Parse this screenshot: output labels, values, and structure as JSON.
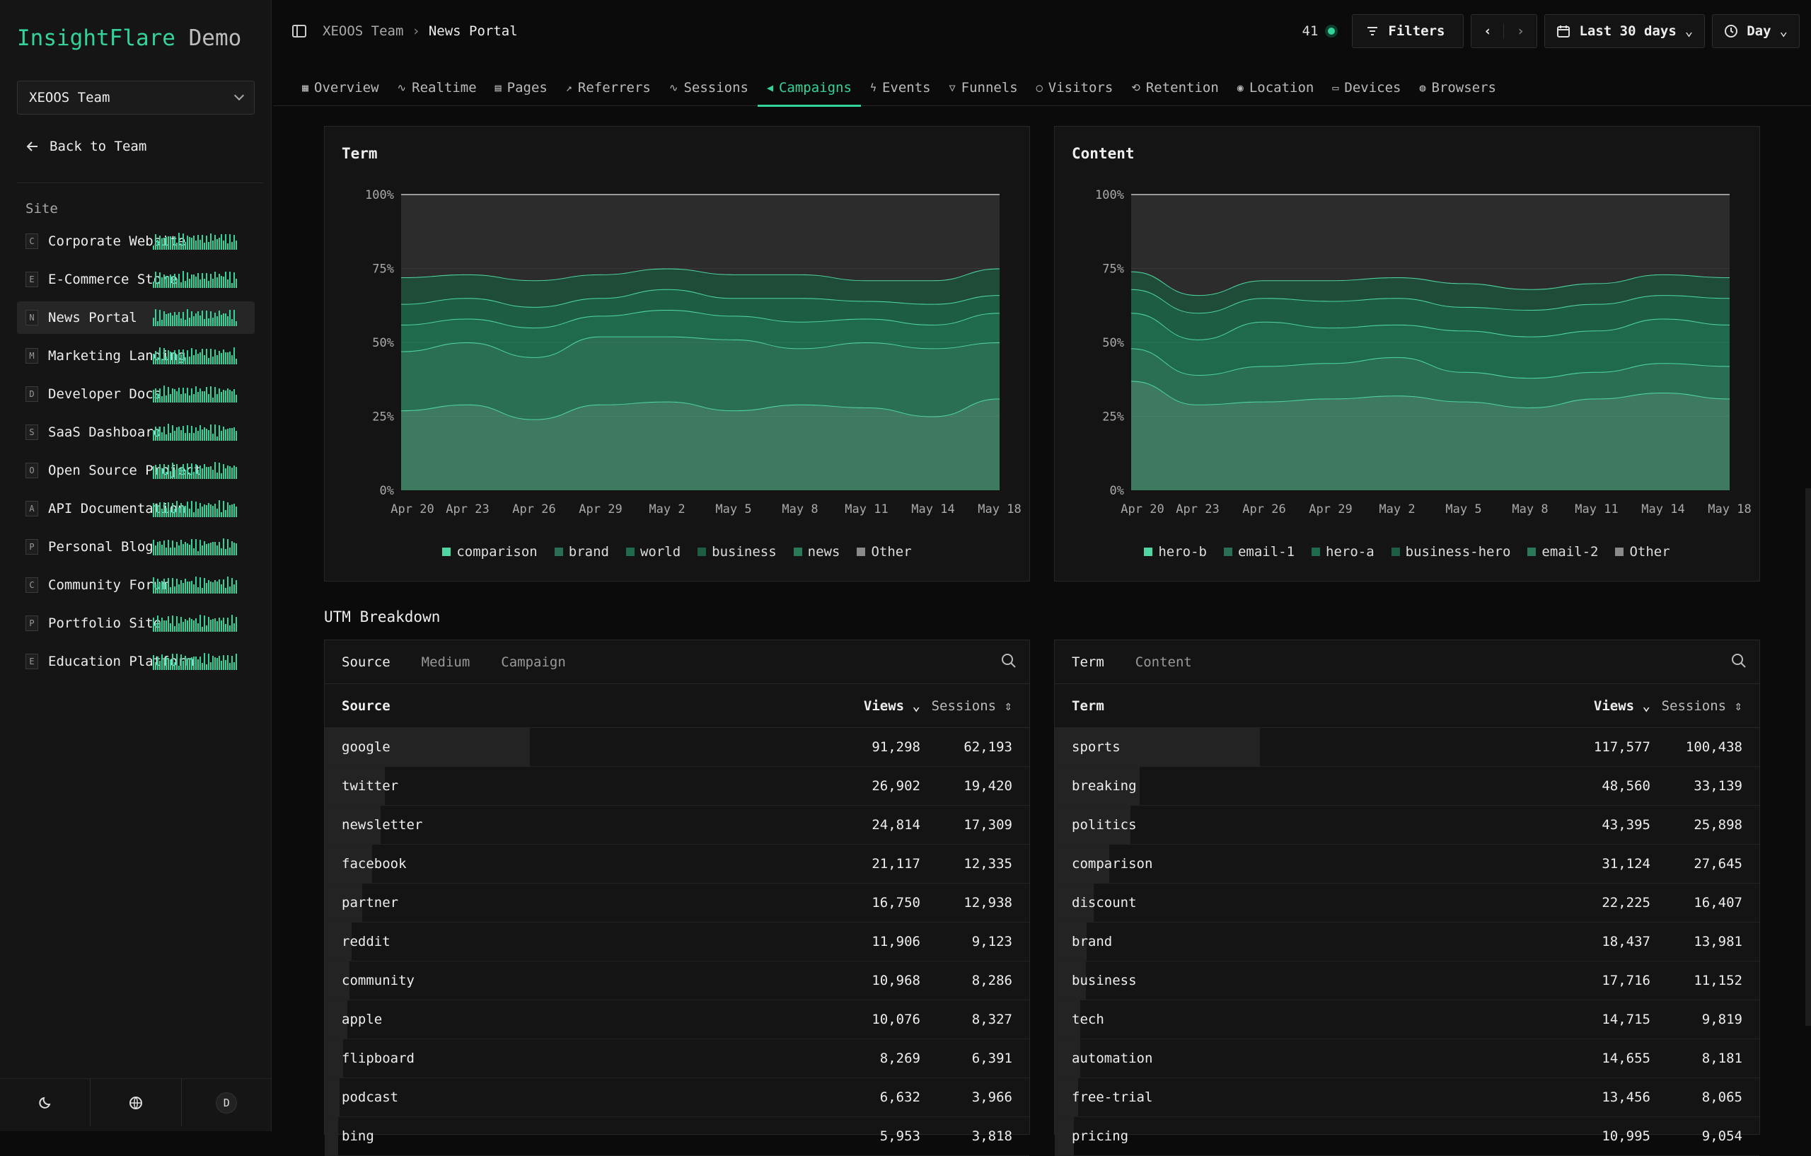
{
  "app": {
    "name": "InsightFlare",
    "suffix": "Demo"
  },
  "team": {
    "selected": "XEOOS Team",
    "back_label": "Back to Team"
  },
  "sidebar": {
    "section_label": "Site",
    "sites": [
      {
        "letter": "C",
        "name": "Corporate Website"
      },
      {
        "letter": "E",
        "name": "E-Commerce Store"
      },
      {
        "letter": "N",
        "name": "News Portal"
      },
      {
        "letter": "M",
        "name": "Marketing Landing"
      },
      {
        "letter": "D",
        "name": "Developer Docs"
      },
      {
        "letter": "S",
        "name": "SaaS Dashboard"
      },
      {
        "letter": "O",
        "name": "Open Source Project"
      },
      {
        "letter": "A",
        "name": "API Documentation"
      },
      {
        "letter": "P",
        "name": "Personal Blog"
      },
      {
        "letter": "C",
        "name": "Community Forum"
      },
      {
        "letter": "P",
        "name": "Portfolio Site"
      },
      {
        "letter": "E",
        "name": "Education Platform"
      }
    ],
    "avatar": "D"
  },
  "header": {
    "breadcrumb_team": "XEOOS Team",
    "breadcrumb_site": "News Portal",
    "online_count": "41",
    "filters_label": "Filters",
    "range_label": "Last 30 days",
    "interval_label": "Day"
  },
  "tabs": [
    "Overview",
    "Realtime",
    "Pages",
    "Referrers",
    "Sessions",
    "Campaigns",
    "Events",
    "Funnels",
    "Visitors",
    "Retention",
    "Location",
    "Devices",
    "Browsers"
  ],
  "colors": {
    "accent": "#34d399"
  },
  "chart_data": [
    {
      "type": "area",
      "title": "Term",
      "stacked": "percent",
      "ylim": [
        0,
        100
      ],
      "yticks": [
        "0%",
        "25%",
        "50%",
        "75%",
        "100%"
      ],
      "x": [
        "Apr 20",
        "Apr 23",
        "Apr 26",
        "Apr 29",
        "May 2",
        "May 5",
        "May 8",
        "May 11",
        "May 14",
        "May 18"
      ],
      "series": [
        {
          "name": "comparison",
          "color": "#3d7a60",
          "values": [
            27,
            29,
            24,
            29,
            30,
            27,
            29,
            28,
            25,
            31
          ]
        },
        {
          "name": "brand",
          "color": "#2a6e53",
          "values": [
            20,
            21,
            21,
            23,
            22,
            24,
            19,
            22,
            23,
            19
          ]
        },
        {
          "name": "world",
          "color": "#1f6a4c",
          "values": [
            9,
            8,
            10,
            7,
            9,
            8,
            9,
            8,
            8,
            10
          ]
        },
        {
          "name": "business",
          "color": "#1c5d43",
          "values": [
            7,
            7,
            7,
            6,
            7,
            6,
            8,
            6,
            7,
            6
          ]
        },
        {
          "name": "news",
          "color": "#1f4c39",
          "values": [
            9,
            8,
            9,
            8,
            7,
            8,
            8,
            7,
            8,
            9
          ]
        },
        {
          "name": "Other",
          "color": "#2c2c2c",
          "values": [
            28,
            27,
            29,
            27,
            25,
            27,
            27,
            29,
            29,
            25
          ]
        }
      ]
    },
    {
      "type": "area",
      "title": "Content",
      "stacked": "percent",
      "ylim": [
        0,
        100
      ],
      "yticks": [
        "0%",
        "25%",
        "50%",
        "75%",
        "100%"
      ],
      "x": [
        "Apr 20",
        "Apr 23",
        "Apr 26",
        "Apr 29",
        "May 2",
        "May 5",
        "May 8",
        "May 11",
        "May 14",
        "May 18"
      ],
      "series": [
        {
          "name": "hero-b",
          "color": "#3d7a60",
          "values": [
            37,
            29,
            30,
            31,
            32,
            30,
            28,
            31,
            33,
            31
          ]
        },
        {
          "name": "email-1",
          "color": "#2a6e53",
          "values": [
            11,
            10,
            12,
            12,
            13,
            10,
            10,
            9,
            10,
            11
          ]
        },
        {
          "name": "hero-a",
          "color": "#1f6a4c",
          "values": [
            12,
            12,
            15,
            12,
            11,
            14,
            14,
            14,
            15,
            14
          ]
        },
        {
          "name": "business-hero",
          "color": "#1c5d43",
          "values": [
            8,
            9,
            8,
            9,
            9,
            8,
            9,
            9,
            8,
            9
          ]
        },
        {
          "name": "email-2",
          "color": "#1f4c39",
          "values": [
            6,
            6,
            6,
            7,
            7,
            8,
            7,
            7,
            7,
            7
          ]
        },
        {
          "name": "Other",
          "color": "#2c2c2c",
          "values": [
            26,
            34,
            29,
            29,
            28,
            30,
            32,
            30,
            27,
            28
          ]
        }
      ]
    }
  ],
  "utm": {
    "title": "UTM Breakdown",
    "left": {
      "tabs": [
        "Source",
        "Medium",
        "Campaign"
      ],
      "col1": "Source",
      "col2": "Views",
      "col3": "Sessions",
      "rows": [
        [
          "google",
          "91,298",
          "62,193"
        ],
        [
          "twitter",
          "26,902",
          "19,420"
        ],
        [
          "newsletter",
          "24,814",
          "17,309"
        ],
        [
          "facebook",
          "21,117",
          "12,335"
        ],
        [
          "partner",
          "16,750",
          "12,938"
        ],
        [
          "reddit",
          "11,906",
          "9,123"
        ],
        [
          "community",
          "10,968",
          "8,286"
        ],
        [
          "apple",
          "10,076",
          "8,327"
        ],
        [
          "flipboard",
          "8,269",
          "6,391"
        ],
        [
          "podcast",
          "6,632",
          "3,966"
        ],
        [
          "bing",
          "5,953",
          "3,818"
        ]
      ]
    },
    "right": {
      "tabs": [
        "Term",
        "Content"
      ],
      "col1": "Term",
      "col2": "Views",
      "col3": "Sessions",
      "rows": [
        [
          "sports",
          "117,577",
          "100,438"
        ],
        [
          "breaking",
          "48,560",
          "33,139"
        ],
        [
          "politics",
          "43,395",
          "25,898"
        ],
        [
          "comparison",
          "31,124",
          "27,645"
        ],
        [
          "discount",
          "22,225",
          "16,407"
        ],
        [
          "brand",
          "18,437",
          "13,981"
        ],
        [
          "business",
          "17,716",
          "11,152"
        ],
        [
          "tech",
          "14,715",
          "9,819"
        ],
        [
          "automation",
          "14,655",
          "8,181"
        ],
        [
          "free-trial",
          "13,456",
          "8,065"
        ],
        [
          "pricing",
          "10,995",
          "9,054"
        ]
      ]
    }
  }
}
